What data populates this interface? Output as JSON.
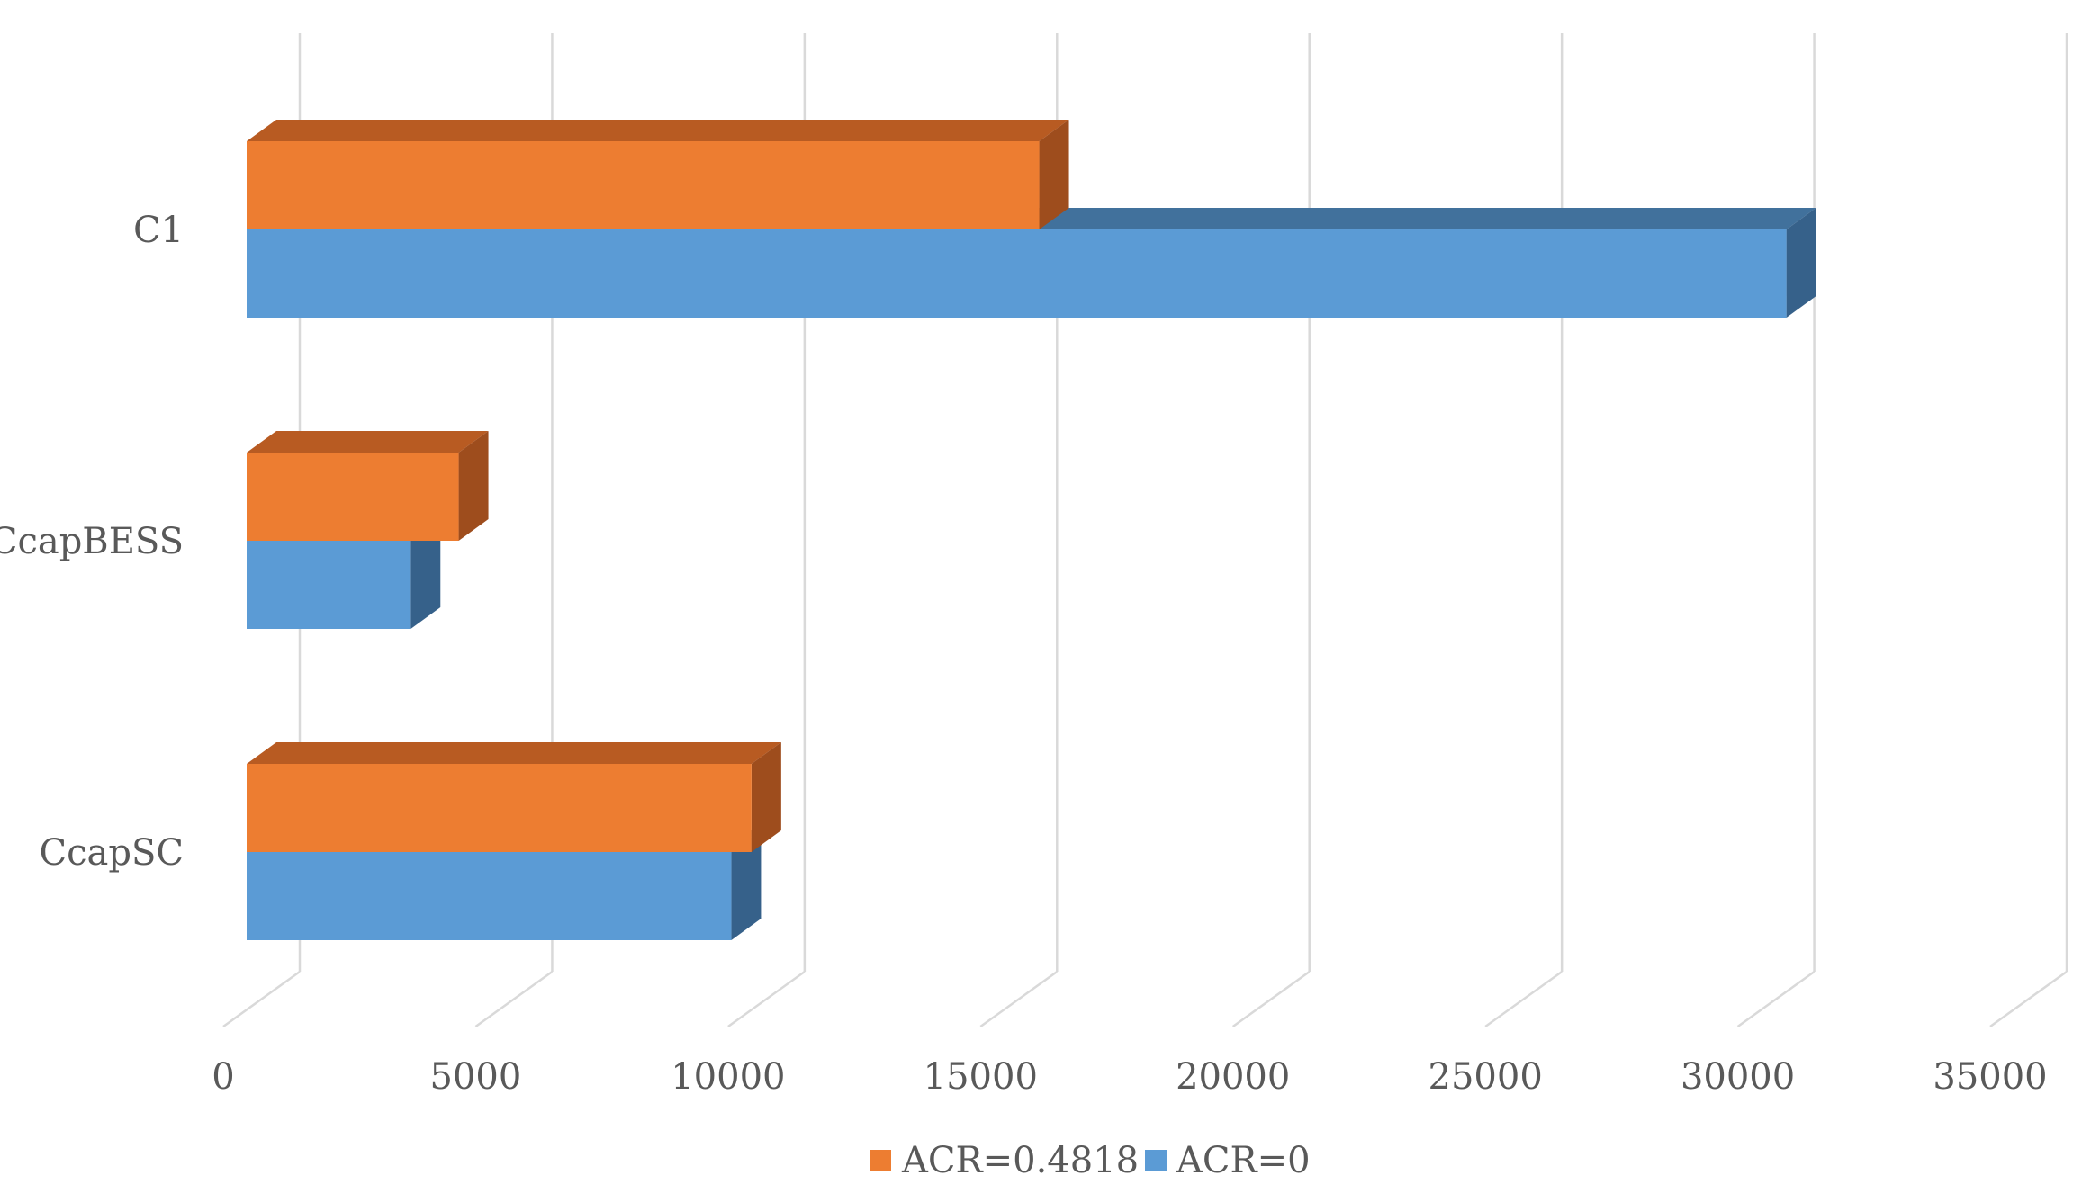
{
  "chart_data": {
    "type": "bar",
    "orientation": "horizontal",
    "style": "3d",
    "categories": [
      "C1",
      "CcapBESS",
      "CcapSC"
    ],
    "series": [
      {
        "name": "ACR=0.4818",
        "values": [
          15700,
          4200,
          10000
        ],
        "color": "#ED7D31",
        "top_color": "#B85B22",
        "side_color": "#9E4D1D"
      },
      {
        "name": "ACR=0",
        "values": [
          30500,
          3250,
          9600
        ],
        "color": "#5B9BD5",
        "top_color": "#41719C",
        "side_color": "#36618A"
      }
    ],
    "x_ticks": [
      "0",
      "5000",
      "10000",
      "15000",
      "20000",
      "25000",
      "30000",
      "35000"
    ],
    "xlim": [
      0,
      35000
    ],
    "grid": true,
    "legend_position": "bottom",
    "gridline_color": "#D9D9D9",
    "tick_label_color": "#595959"
  }
}
